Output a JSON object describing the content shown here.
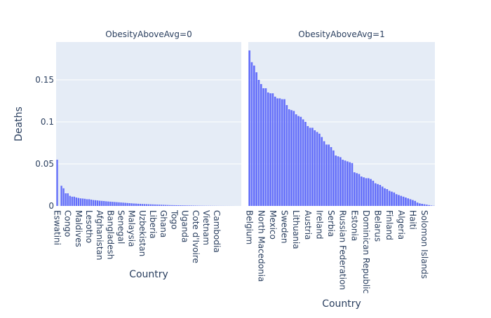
{
  "chart_data": {
    "type": "bar",
    "ylabel": "Deaths",
    "colors": {
      "bar": "#636efa",
      "plot_bg": "#e5ecf6",
      "grid": "#ffffff",
      "text": "#2a3f5f"
    },
    "ylim": [
      0,
      0.195
    ],
    "y_ticks": [
      {
        "value": 0,
        "label": "0"
      },
      {
        "value": 0.05,
        "label": "0.05"
      },
      {
        "value": 0.1,
        "label": "0.1"
      },
      {
        "value": 0.15,
        "label": "0.15"
      }
    ],
    "panels": [
      {
        "title": "ObesityAboveAvg=0",
        "xlabel": "Country",
        "n_bars": 87,
        "tick_labels": [
          {
            "index": 0,
            "label": "Eswatini"
          },
          {
            "index": 5,
            "label": "Congo"
          },
          {
            "index": 10,
            "label": "Maldives"
          },
          {
            "index": 15,
            "label": "Lesotho"
          },
          {
            "index": 20,
            "label": "Afghanistan"
          },
          {
            "index": 25,
            "label": "Bangladesh"
          },
          {
            "index": 30,
            "label": "Senegal"
          },
          {
            "index": 35,
            "label": "Malaysia"
          },
          {
            "index": 40,
            "label": "Uzbekistan"
          },
          {
            "index": 45,
            "label": "Liberia"
          },
          {
            "index": 50,
            "label": "Ghana"
          },
          {
            "index": 55,
            "label": "Togo"
          },
          {
            "index": 60,
            "label": "Uganda"
          },
          {
            "index": 65,
            "label": "Cote d'Ivoire"
          },
          {
            "index": 70,
            "label": "Vietnam"
          },
          {
            "index": 75,
            "label": "Cambodia"
          }
        ],
        "values": [
          0.055,
          0.0,
          0.024,
          0.021,
          0.015,
          0.015,
          0.012,
          0.011,
          0.011,
          0.01,
          0.0095,
          0.009,
          0.0088,
          0.0085,
          0.008,
          0.008,
          0.0075,
          0.007,
          0.0068,
          0.0065,
          0.0062,
          0.006,
          0.0058,
          0.0055,
          0.0053,
          0.0051,
          0.0049,
          0.0047,
          0.0045,
          0.0043,
          0.0041,
          0.0039,
          0.0037,
          0.0035,
          0.0033,
          0.0031,
          0.0029,
          0.0028,
          0.0026,
          0.0025,
          0.0023,
          0.0022,
          0.0021,
          0.002,
          0.0019,
          0.0018,
          0.0017,
          0.0016,
          0.0015,
          0.0014,
          0.0013,
          0.0012,
          0.0011,
          0.001,
          0.00095,
          0.0009,
          0.00085,
          0.0008,
          0.00075,
          0.0007,
          0.00065,
          0.0006,
          0.00055,
          0.0005,
          0.00045,
          0.0004,
          0.00035,
          0.0003,
          0.00028,
          0.00025,
          0.00022,
          0.0002,
          0.00018,
          0.00016,
          0.00014,
          0.00012,
          0.0001,
          9e-05,
          8e-05,
          7e-05,
          6e-05,
          5e-05,
          4e-05,
          3e-05,
          2e-05,
          1e-05,
          1e-05
        ]
      },
      {
        "title": "ObesityAboveAvg=1",
        "xlabel": "Country",
        "n_bars": 80,
        "tick_labels": [
          {
            "index": 0,
            "label": "Belgium"
          },
          {
            "index": 5,
            "label": "North Macedonia"
          },
          {
            "index": 10,
            "label": "Mexico"
          },
          {
            "index": 15,
            "label": "Sweden"
          },
          {
            "index": 20,
            "label": "Lithuania"
          },
          {
            "index": 25,
            "label": "Austria"
          },
          {
            "index": 30,
            "label": "Ireland"
          },
          {
            "index": 35,
            "label": "Serbia"
          },
          {
            "index": 40,
            "label": "Russian Federation"
          },
          {
            "index": 45,
            "label": "Estonia"
          },
          {
            "index": 50,
            "label": "Dominican Republic"
          },
          {
            "index": 55,
            "label": "Belarus"
          },
          {
            "index": 60,
            "label": "Finland"
          },
          {
            "index": 65,
            "label": "Algeria"
          },
          {
            "index": 70,
            "label": "Haiti"
          },
          {
            "index": 75,
            "label": "Solomon Islands"
          }
        ],
        "values": [
          0.185,
          0.171,
          0.167,
          0.159,
          0.15,
          0.145,
          0.14,
          0.14,
          0.135,
          0.134,
          0.134,
          0.13,
          0.128,
          0.128,
          0.127,
          0.127,
          0.12,
          0.115,
          0.114,
          0.113,
          0.109,
          0.107,
          0.106,
          0.103,
          0.1,
          0.095,
          0.093,
          0.093,
          0.09,
          0.088,
          0.086,
          0.082,
          0.077,
          0.073,
          0.073,
          0.07,
          0.066,
          0.06,
          0.059,
          0.058,
          0.055,
          0.054,
          0.053,
          0.052,
          0.051,
          0.04,
          0.039,
          0.038,
          0.035,
          0.034,
          0.033,
          0.033,
          0.032,
          0.03,
          0.027,
          0.026,
          0.025,
          0.023,
          0.021,
          0.02,
          0.018,
          0.017,
          0.016,
          0.014,
          0.013,
          0.012,
          0.011,
          0.01,
          0.009,
          0.008,
          0.007,
          0.006,
          0.004,
          0.003,
          0.0025,
          0.002,
          0.0015,
          0.001,
          0.0005,
          0.0002
        ]
      }
    ]
  }
}
